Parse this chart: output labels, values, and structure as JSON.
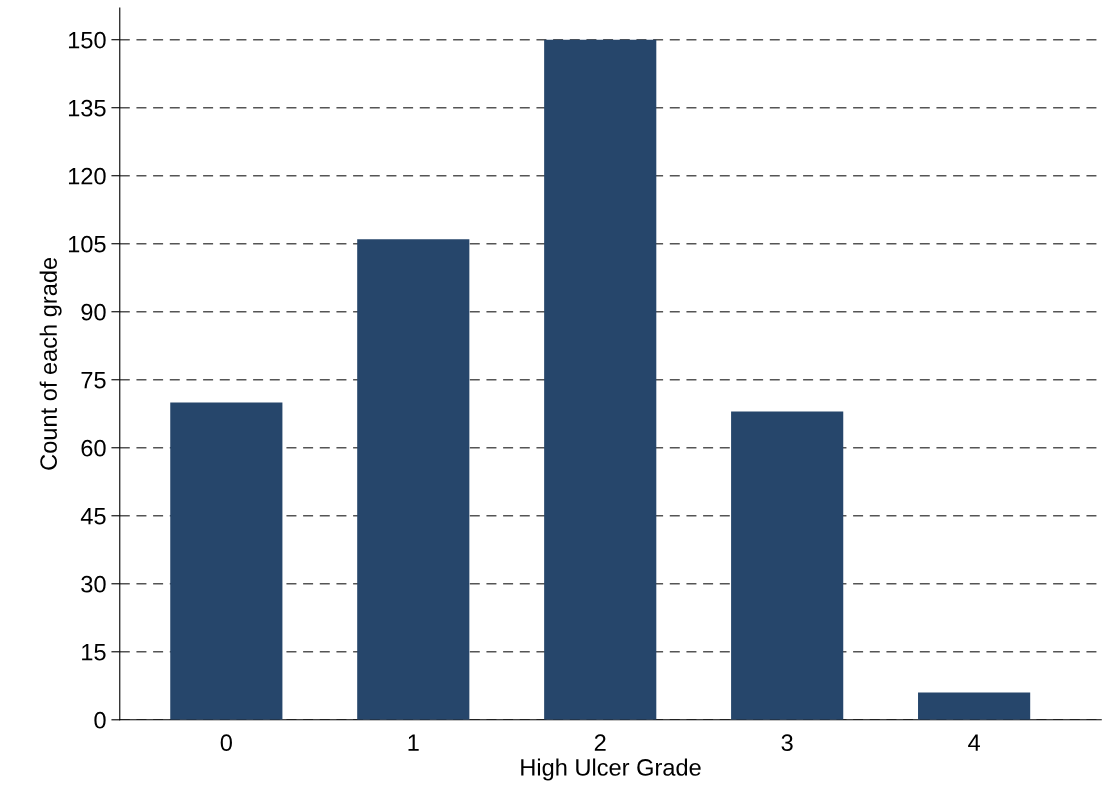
{
  "chart_data": {
    "type": "bar",
    "xlabel": "High Ulcer Grade",
    "ylabel": "Count of each grade",
    "categories": [
      "0",
      "1",
      "2",
      "3",
      "4"
    ],
    "values": [
      70,
      106,
      150,
      68,
      6
    ],
    "color": "#26466b",
    "ylim": [
      0,
      157
    ],
    "yticks": [
      0,
      15,
      30,
      45,
      60,
      75,
      90,
      105,
      120,
      135,
      150
    ],
    "grid": "y",
    "legend": false
  }
}
